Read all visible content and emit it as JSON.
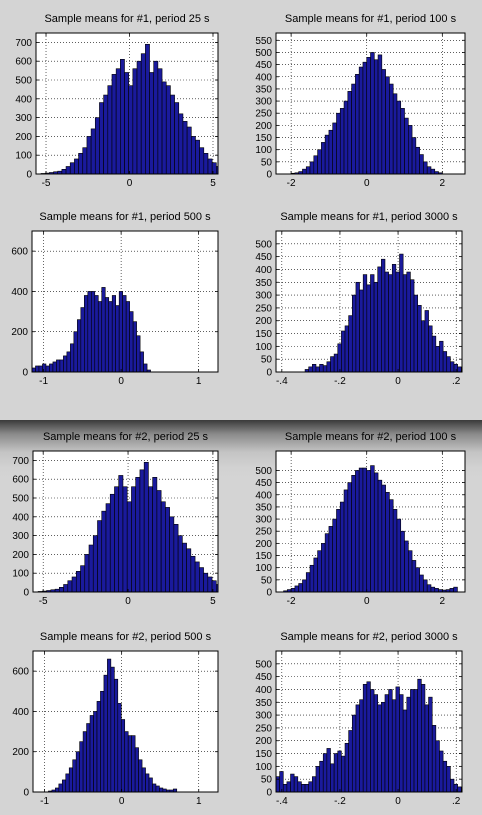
{
  "chart_data": [
    {
      "type": "bar",
      "title": "Sample means for #1, period 25 s",
      "xlim": [
        -5.6,
        5.3
      ],
      "ylim": [
        0,
        750
      ],
      "xticks": [
        -5,
        0,
        5
      ],
      "yticks": [
        0,
        100,
        200,
        300,
        400,
        500,
        600,
        700
      ],
      "grid": true,
      "bar_color": "#1a1a9c",
      "bin_start": -5.3,
      "bin_width": 0.25,
      "values": [
        3,
        5,
        8,
        12,
        15,
        25,
        40,
        60,
        80,
        110,
        140,
        200,
        240,
        300,
        380,
        420,
        470,
        530,
        560,
        610,
        540,
        470,
        560,
        600,
        640,
        690,
        540,
        600,
        560,
        490,
        470,
        420,
        380,
        320,
        280,
        250,
        200,
        180,
        140,
        110,
        80,
        60,
        40,
        30,
        25,
        20,
        15,
        10
      ]
    },
    {
      "type": "bar",
      "title": "Sample means for #1, period 100 s",
      "xlim": [
        -2.4,
        2.6
      ],
      "ylim": [
        0,
        580
      ],
      "xticks": [
        -2,
        0,
        2
      ],
      "yticks": [
        0,
        50,
        100,
        150,
        200,
        250,
        300,
        350,
        400,
        450,
        500,
        550
      ],
      "grid": true,
      "bar_color": "#1a1a9c",
      "bin_start": -2.0,
      "bin_width": 0.1,
      "values": [
        3,
        5,
        10,
        20,
        30,
        50,
        75,
        100,
        130,
        160,
        180,
        210,
        250,
        270,
        300,
        340,
        370,
        410,
        440,
        460,
        480,
        500,
        470,
        490,
        430,
        400,
        370,
        330,
        300,
        270,
        230,
        200,
        150,
        110,
        80,
        50,
        30,
        20,
        10,
        5
      ]
    },
    {
      "type": "bar",
      "title": "Sample means for #1, period 500 s",
      "xlim": [
        -1.15,
        1.25
      ],
      "ylim": [
        0,
        700
      ],
      "xticks": [
        -1,
        0,
        1
      ],
      "yticks": [
        0,
        200,
        400,
        600
      ],
      "grid": true,
      "bar_color": "#1a1a9c",
      "bin_start": -1.15,
      "bin_width": 0.045,
      "values": [
        20,
        30,
        30,
        40,
        30,
        40,
        50,
        60,
        60,
        80,
        100,
        140,
        200,
        260,
        320,
        380,
        400,
        400,
        380,
        350,
        420,
        370,
        350,
        380,
        330,
        400,
        380,
        350,
        300,
        250,
        180,
        100,
        40,
        10
      ]
    },
    {
      "type": "bar",
      "title": "Sample means for #1, period 3000 s",
      "xlim": [
        -0.42,
        0.22
      ],
      "ylim": [
        0,
        550
      ],
      "xticks": [
        -0.4,
        -0.2,
        0,
        0.2
      ],
      "yticks": [
        0,
        50,
        100,
        150,
        200,
        250,
        300,
        350,
        400,
        450,
        500
      ],
      "grid": true,
      "bar_color": "#1a1a9c",
      "bin_start": -0.42,
      "bin_width": 0.0125,
      "values": [
        0,
        0,
        0,
        0,
        0,
        0,
        0,
        0,
        10,
        20,
        30,
        20,
        30,
        25,
        40,
        60,
        70,
        110,
        160,
        180,
        220,
        300,
        350,
        320,
        380,
        340,
        380,
        350,
        410,
        440,
        390,
        380,
        420,
        390,
        460,
        380,
        390,
        360,
        300,
        260,
        200,
        240,
        180,
        140,
        100,
        120,
        80,
        60,
        40,
        30,
        20
      ]
    },
    {
      "type": "bar",
      "title": "Sample means for #2, period 25 s",
      "xlim": [
        -5.6,
        5.3
      ],
      "ylim": [
        0,
        750
      ],
      "xticks": [
        -5,
        0,
        5
      ],
      "yticks": [
        0,
        100,
        200,
        300,
        400,
        500,
        600,
        700
      ],
      "grid": true,
      "bar_color": "#1a1a9c",
      "bin_start": -5.3,
      "bin_width": 0.25,
      "values": [
        3,
        5,
        8,
        12,
        15,
        25,
        40,
        60,
        80,
        110,
        140,
        200,
        250,
        300,
        380,
        430,
        470,
        520,
        560,
        620,
        560,
        480,
        560,
        610,
        650,
        690,
        560,
        610,
        540,
        480,
        450,
        400,
        360,
        300,
        260,
        230,
        190,
        160,
        130,
        100,
        80,
        60,
        40,
        30,
        25,
        20,
        15,
        10
      ]
    },
    {
      "type": "bar",
      "title": "Sample means for #2, period 100 s",
      "xlim": [
        -2.4,
        2.6
      ],
      "ylim": [
        0,
        580
      ],
      "xticks": [
        -2,
        0,
        2
      ],
      "yticks": [
        0,
        50,
        100,
        150,
        200,
        250,
        300,
        350,
        400,
        450,
        500
      ],
      "grid": true,
      "bar_color": "#1a1a9c",
      "bin_start": -2.2,
      "bin_width": 0.1,
      "values": [
        5,
        10,
        15,
        25,
        35,
        50,
        80,
        110,
        140,
        170,
        200,
        240,
        270,
        300,
        340,
        370,
        420,
        450,
        480,
        500,
        510,
        510,
        500,
        520,
        490,
        460,
        440,
        410,
        380,
        340,
        300,
        250,
        210,
        170,
        130,
        100,
        70,
        50,
        30,
        20,
        15,
        10,
        8,
        10,
        15,
        20
      ]
    },
    {
      "type": "bar",
      "title": "Sample means for #2, period 500 s",
      "xlim": [
        -1.15,
        1.25
      ],
      "ylim": [
        0,
        700
      ],
      "xticks": [
        -1,
        0,
        1
      ],
      "yticks": [
        0,
        200,
        400,
        600
      ],
      "grid": true,
      "bar_color": "#1a1a9c",
      "bin_start": -0.95,
      "bin_width": 0.045,
      "values": [
        5,
        10,
        20,
        40,
        60,
        90,
        120,
        160,
        200,
        250,
        300,
        340,
        380,
        400,
        450,
        500,
        580,
        660,
        620,
        560,
        440,
        360,
        300,
        280,
        280,
        220,
        160,
        120,
        90,
        70,
        40,
        30,
        20,
        15,
        10,
        10,
        15
      ]
    },
    {
      "type": "bar",
      "title": "Sample means for #2, period 3000 s",
      "xlim": [
        -0.42,
        0.22
      ],
      "ylim": [
        0,
        550
      ],
      "xticks": [
        -0.4,
        -0.2,
        0,
        0.2
      ],
      "yticks": [
        0,
        50,
        100,
        150,
        200,
        250,
        300,
        350,
        400,
        450,
        500
      ],
      "grid": true,
      "bar_color": "#1a1a9c",
      "bin_start": -0.42,
      "bin_width": 0.0125,
      "values": [
        60,
        80,
        30,
        40,
        70,
        60,
        40,
        30,
        30,
        40,
        60,
        100,
        120,
        150,
        170,
        110,
        150,
        160,
        140,
        190,
        240,
        300,
        340,
        360,
        420,
        430,
        400,
        380,
        340,
        350,
        380,
        400,
        360,
        410,
        380,
        320,
        370,
        400,
        400,
        440,
        420,
        340,
        370,
        260,
        200,
        160,
        120,
        100,
        50,
        30,
        20
      ]
    }
  ]
}
